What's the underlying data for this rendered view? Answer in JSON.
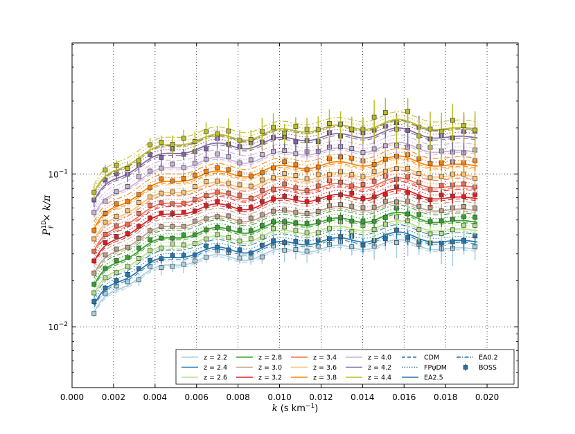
{
  "chart_data": {
    "type": "line",
    "xlabel_pre": "k",
    "xlabel_post": " (s km",
    "xlabel_sup": "−1",
    "xlabel_close": ")",
    "ylabel_main": "P",
    "ylabel_sup": "1D",
    "ylabel_sub": "F",
    "ylabel_tail": " × k/π",
    "xlim": [
      0.0,
      0.0215
    ],
    "ylim": [
      0.004,
      0.72
    ],
    "yscale": "log",
    "grid": true,
    "legend_position": "lower-right",
    "x_ticks": [
      "0.000",
      "0.002",
      "0.004",
      "0.006",
      "0.008",
      "0.010",
      "0.012",
      "0.014",
      "0.016",
      "0.018",
      "0.020"
    ],
    "y_ticks": [
      {
        "base": "10",
        "exp": "−1",
        "value": 0.1
      },
      {
        "base": "10",
        "exp": "−2",
        "value": 0.01
      }
    ],
    "k_values": [
      0.00106,
      0.0016,
      0.00214,
      0.00268,
      0.00322,
      0.00376,
      0.0043,
      0.00484,
      0.00538,
      0.00592,
      0.00646,
      0.007,
      0.00754,
      0.00808,
      0.00862,
      0.00916,
      0.0097,
      0.01024,
      0.01078,
      0.01132,
      0.01186,
      0.0124,
      0.01294,
      0.01348,
      0.01402,
      0.01456,
      0.0151,
      0.01564,
      0.01618,
      0.01672,
      0.01726,
      0.0178,
      0.01834,
      0.01888,
      0.01942
    ],
    "redshift_series": [
      {
        "name": "z = 2.2",
        "color": "#a6cee3",
        "A": 0.0335,
        "jit": 0.05,
        "err": 0.1
      },
      {
        "name": "z = 2.4",
        "color": "#1f78b4",
        "A": 0.0375,
        "jit": 0.04,
        "err": 0.06
      },
      {
        "name": "z = 2.6",
        "color": "#b2df8a",
        "A": 0.0445,
        "jit": 0.04,
        "err": 0.08
      },
      {
        "name": "z = 2.8",
        "color": "#33a02c",
        "A": 0.0505,
        "jit": 0.03,
        "err": 0.05
      },
      {
        "name": "z = 3.0",
        "color": "#bc9f87",
        "A": 0.06,
        "jit": 0.03,
        "err": 0.05
      },
      {
        "name": "z = 3.2",
        "color": "#e31a1c",
        "A": 0.072,
        "jit": 0.03,
        "err": 0.05
      },
      {
        "name": "z = 3.4",
        "color": "#f26a50",
        "A": 0.085,
        "jit": 0.03,
        "err": 0.05
      },
      {
        "name": "z = 3.6",
        "color": "#fdbf6f",
        "A": 0.1,
        "jit": 0.03,
        "err": 0.06
      },
      {
        "name": "z = 3.8",
        "color": "#ff7f00",
        "A": 0.118,
        "jit": 0.04,
        "err": 0.06
      },
      {
        "name": "z = 4.0",
        "color": "#cab2d6",
        "A": 0.145,
        "jit": 0.05,
        "err": 0.08
      },
      {
        "name": "z = 4.2",
        "color": "#8064a2",
        "A": 0.18,
        "jit": 0.07,
        "err": 0.12
      },
      {
        "name": "z = 4.4",
        "color": "#bcbd22",
        "A": 0.205,
        "jit": 0.09,
        "err": 0.14
      }
    ],
    "legend": {
      "columns": [
        [
          {
            "label": "z = 2.2",
            "key": "line",
            "color": "#a6cee3"
          },
          {
            "label": "z = 2.4",
            "key": "line",
            "color": "#1f78b4"
          },
          {
            "label": "z = 2.6",
            "key": "line",
            "color": "#b2df8a"
          }
        ],
        [
          {
            "label": "z = 2.8",
            "key": "line",
            "color": "#33a02c"
          },
          {
            "label": "z = 3.0",
            "key": "line",
            "color": "#bc9f87"
          },
          {
            "label": "z = 3.2",
            "key": "line",
            "color": "#e31a1c"
          }
        ],
        [
          {
            "label": "z = 3.4",
            "key": "line",
            "color": "#f26a50"
          },
          {
            "label": "z = 3.6",
            "key": "line",
            "color": "#fdbf6f"
          },
          {
            "label": "z = 3.8",
            "key": "line",
            "color": "#ff7f00"
          }
        ],
        [
          {
            "label": "z = 4.0",
            "key": "line",
            "color": "#cab2d6"
          },
          {
            "label": "z = 4.2",
            "key": "line",
            "color": "#8064a2"
          },
          {
            "label": "z = 4.4",
            "key": "line",
            "color": "#bcbd22"
          }
        ],
        [
          {
            "label": "CDM",
            "key": "dashed",
            "color": "#2c6fa8"
          },
          {
            "label": "FPψDM",
            "key": "dotted",
            "color": "#2c6fa8"
          },
          {
            "label": "EA2.5",
            "key": "solid",
            "color": "#2c6fa8"
          }
        ],
        [
          {
            "label": "EA0.2",
            "key": "dashdot",
            "color": "#2c6fa8"
          },
          {
            "label": "BOSS",
            "key": "marker",
            "color": "#2c6fa8"
          }
        ]
      ]
    }
  }
}
